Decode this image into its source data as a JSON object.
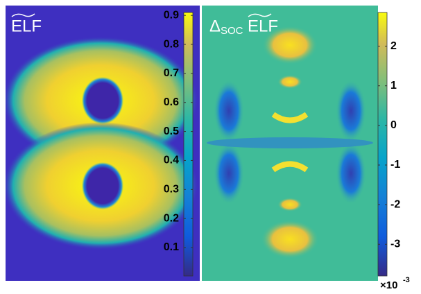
{
  "chart_data": [
    {
      "type": "heatmap",
      "title": "ELF",
      "colormap": "parula",
      "clim": [
        0.002,
        0.91
      ],
      "cticks": [
        0.1,
        0.2,
        0.3,
        0.4,
        0.5,
        0.6,
        0.7,
        0.8,
        0.9
      ]
    },
    {
      "type": "heatmap",
      "title": "ELF",
      "title_prefix": "Δ",
      "title_subscript": "SOC",
      "colormap": "parula",
      "clim": [
        -3.8,
        2.85
      ],
      "cticks": [
        -3,
        -2,
        -1,
        0,
        1,
        2
      ],
      "scale_label": "×10",
      "scale_exponent": "-3"
    }
  ]
}
